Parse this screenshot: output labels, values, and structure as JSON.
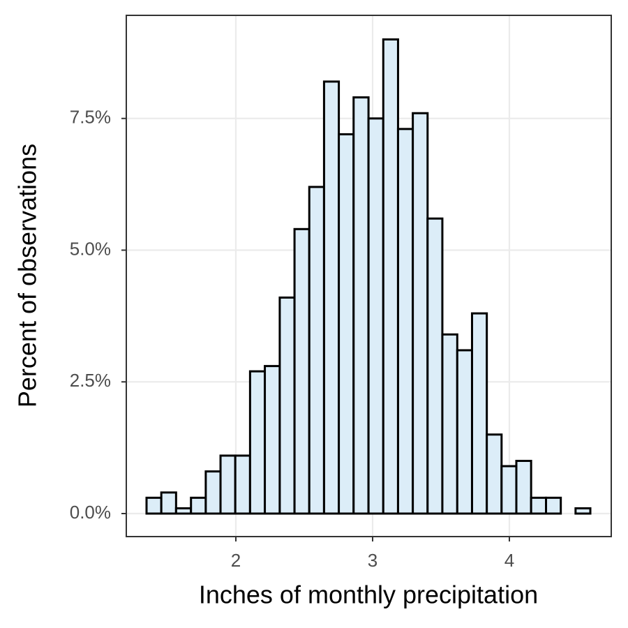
{
  "chart_data": {
    "type": "histogram",
    "x_label": "Inches of monthly precipitation",
    "y_label": "Percent of observations",
    "bins": [
      1.347,
      1.455,
      1.563,
      1.672,
      1.78,
      1.888,
      1.996,
      2.104,
      2.212,
      2.321,
      2.429,
      2.537,
      2.645,
      2.753,
      2.861,
      2.97,
      3.078,
      3.186,
      3.294,
      3.402,
      3.51,
      3.619,
      3.727,
      3.835,
      3.943,
      4.051,
      4.159,
      4.268,
      4.376,
      4.484,
      4.592
    ],
    "values": [
      0.3,
      0.4,
      0.1,
      0.3,
      0.8,
      1.1,
      1.1,
      2.7,
      2.8,
      4.1,
      5.4,
      6.2,
      8.2,
      7.2,
      7.9,
      7.5,
      9.0,
      7.3,
      7.6,
      5.6,
      3.4,
      3.1,
      3.8,
      1.5,
      0.9,
      1.0,
      0.3,
      0.3,
      0,
      0.1
    ],
    "color": "#dcedf8",
    "edge_color": "#000000",
    "xlim": [
      1.199,
      4.745
    ],
    "ylim": [
      -0.437,
      9.457
    ],
    "xticks": [
      2,
      3,
      4
    ],
    "yticks": [
      {
        "value": 0,
        "label": "0.0%"
      },
      {
        "value": 2.5,
        "label": "2.5%"
      },
      {
        "value": 5,
        "label": "5.0%"
      },
      {
        "value": 7.5,
        "label": "7.5%"
      }
    ],
    "grid": true
  }
}
